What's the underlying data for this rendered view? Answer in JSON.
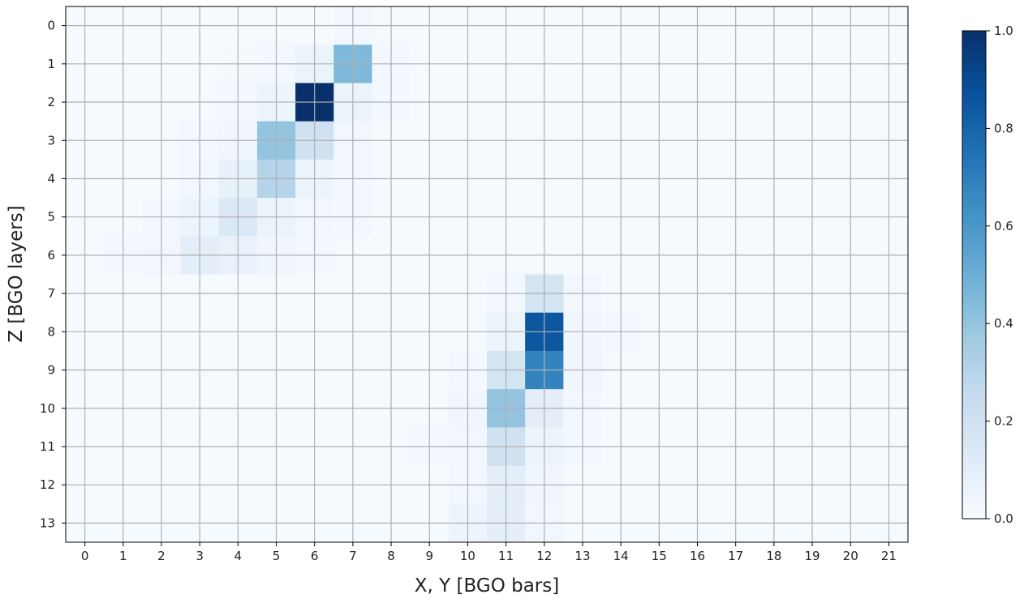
{
  "chart_data": {
    "type": "heatmap",
    "xlabel": "X, Y [BGO bars]",
    "ylabel": "Z [BGO layers]",
    "x_ticks": [
      0,
      1,
      2,
      3,
      4,
      5,
      6,
      7,
      8,
      9,
      10,
      11,
      12,
      13,
      14,
      15,
      16,
      17,
      18,
      19,
      20,
      21
    ],
    "y_ticks": [
      0,
      1,
      2,
      3,
      4,
      5,
      6,
      7,
      8,
      9,
      10,
      11,
      12,
      13
    ],
    "xlim": [
      -0.5,
      21.5
    ],
    "ylim": [
      13.5,
      -0.5
    ],
    "grid": true,
    "colormap": "Blues",
    "colorbar": {
      "min": 0.0,
      "max": 1.0,
      "ticks": [
        "0.0",
        "0.2",
        "0.4",
        "0.6",
        "0.8",
        "1.0"
      ]
    },
    "background_value": 0.01,
    "cells": [
      {
        "x": 7,
        "y": 0,
        "v": 0.02
      },
      {
        "x": 6,
        "y": 1,
        "v": 0.06
      },
      {
        "x": 7,
        "y": 1,
        "v": 0.45
      },
      {
        "x": 5,
        "y": 1,
        "v": 0.02
      },
      {
        "x": 8,
        "y": 1,
        "v": 0.02
      },
      {
        "x": 4,
        "y": 1,
        "v": 0.015
      },
      {
        "x": 4,
        "y": 2,
        "v": 0.02
      },
      {
        "x": 5,
        "y": 2,
        "v": 0.05
      },
      {
        "x": 6,
        "y": 2,
        "v": 1.0
      },
      {
        "x": 7,
        "y": 2,
        "v": 0.06
      },
      {
        "x": 8,
        "y": 2,
        "v": 0.025
      },
      {
        "x": 3,
        "y": 3,
        "v": 0.02
      },
      {
        "x": 4,
        "y": 3,
        "v": 0.04
      },
      {
        "x": 5,
        "y": 3,
        "v": 0.4
      },
      {
        "x": 6,
        "y": 3,
        "v": 0.2
      },
      {
        "x": 7,
        "y": 3,
        "v": 0.03
      },
      {
        "x": 3,
        "y": 4,
        "v": 0.03
      },
      {
        "x": 4,
        "y": 4,
        "v": 0.08
      },
      {
        "x": 5,
        "y": 4,
        "v": 0.3
      },
      {
        "x": 6,
        "y": 4,
        "v": 0.05
      },
      {
        "x": 7,
        "y": 4,
        "v": 0.025
      },
      {
        "x": 2,
        "y": 5,
        "v": 0.02
      },
      {
        "x": 3,
        "y": 5,
        "v": 0.05
      },
      {
        "x": 4,
        "y": 5,
        "v": 0.14
      },
      {
        "x": 5,
        "y": 5,
        "v": 0.06
      },
      {
        "x": 6,
        "y": 5,
        "v": 0.03
      },
      {
        "x": 7,
        "y": 5,
        "v": 0.02
      },
      {
        "x": 1,
        "y": 6,
        "v": 0.02
      },
      {
        "x": 2,
        "y": 6,
        "v": 0.03
      },
      {
        "x": 3,
        "y": 6,
        "v": 0.1
      },
      {
        "x": 4,
        "y": 6,
        "v": 0.07
      },
      {
        "x": 5,
        "y": 6,
        "v": 0.04
      },
      {
        "x": 6,
        "y": 6,
        "v": 0.025
      },
      {
        "x": 12,
        "y": 7,
        "v": 0.18
      },
      {
        "x": 11,
        "y": 7,
        "v": 0.02
      },
      {
        "x": 13,
        "y": 7,
        "v": 0.03
      },
      {
        "x": 11,
        "y": 8,
        "v": 0.06
      },
      {
        "x": 12,
        "y": 8,
        "v": 0.85
      },
      {
        "x": 13,
        "y": 8,
        "v": 0.04
      },
      {
        "x": 14,
        "y": 8,
        "v": 0.02
      },
      {
        "x": 11,
        "y": 9,
        "v": 0.18
      },
      {
        "x": 12,
        "y": 9,
        "v": 0.68
      },
      {
        "x": 13,
        "y": 9,
        "v": 0.04
      },
      {
        "x": 10,
        "y": 9,
        "v": 0.025
      },
      {
        "x": 10,
        "y": 10,
        "v": 0.04
      },
      {
        "x": 11,
        "y": 10,
        "v": 0.4
      },
      {
        "x": 12,
        "y": 10,
        "v": 0.1
      },
      {
        "x": 13,
        "y": 10,
        "v": 0.03
      },
      {
        "x": 9,
        "y": 11,
        "v": 0.02
      },
      {
        "x": 10,
        "y": 11,
        "v": 0.03
      },
      {
        "x": 11,
        "y": 11,
        "v": 0.2
      },
      {
        "x": 12,
        "y": 11,
        "v": 0.05
      },
      {
        "x": 13,
        "y": 11,
        "v": 0.02
      },
      {
        "x": 10,
        "y": 12,
        "v": 0.035
      },
      {
        "x": 11,
        "y": 12,
        "v": 0.1
      },
      {
        "x": 12,
        "y": 12,
        "v": 0.04
      },
      {
        "x": 10,
        "y": 13,
        "v": 0.05
      },
      {
        "x": 11,
        "y": 13,
        "v": 0.09
      },
      {
        "x": 12,
        "y": 13,
        "v": 0.03
      }
    ]
  }
}
